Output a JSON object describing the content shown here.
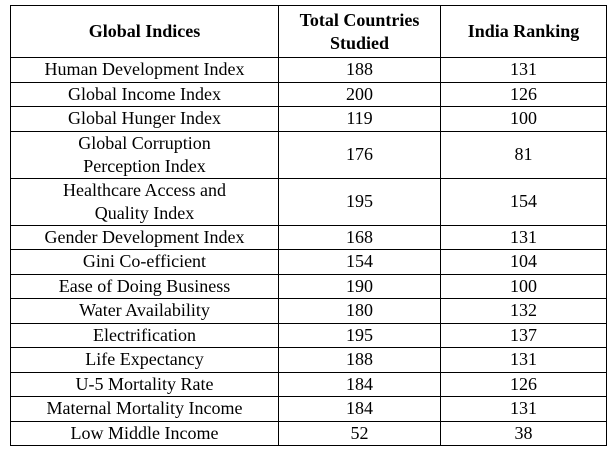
{
  "table": {
    "header": [
      "Global Indices",
      "Total Countries Studied",
      "India Ranking"
    ],
    "rows": [
      [
        "Human Development Index",
        188,
        131
      ],
      [
        "Global Income Index",
        200,
        126
      ],
      [
        "Global Hunger Index",
        119,
        100
      ],
      [
        "Global Corruption Perception Index",
        176,
        81
      ],
      [
        "Healthcare Access and Quality Index",
        195,
        154
      ],
      [
        "Gender Development Index",
        168,
        131
      ],
      [
        "Gini Co-efficient",
        154,
        104
      ],
      [
        "Ease of Doing Business",
        190,
        100
      ],
      [
        "Water Availability",
        180,
        132
      ],
      [
        "Electrification",
        195,
        137
      ],
      [
        "Life Expectancy",
        188,
        131
      ],
      [
        "U-5 Mortality Rate",
        184,
        126
      ],
      [
        "Maternal Mortality Income",
        184,
        131
      ],
      [
        "Low Middle Income",
        52,
        38
      ]
    ]
  }
}
